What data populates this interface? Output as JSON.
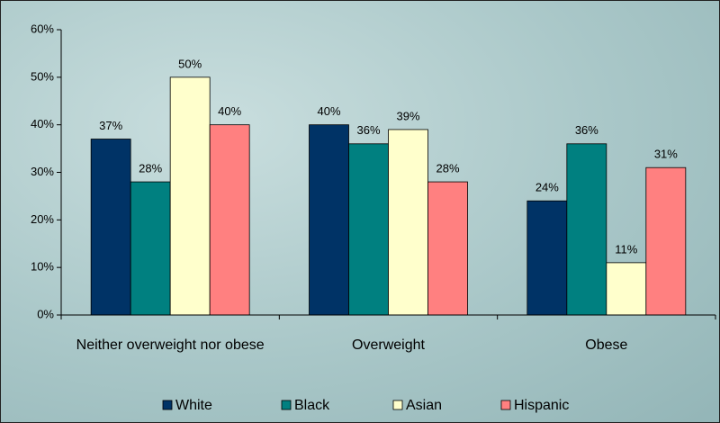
{
  "chart_data": {
    "type": "bar",
    "categories": [
      "Neither overweight nor obese",
      "Overweight",
      "Obese"
    ],
    "series": [
      {
        "name": "White",
        "color": "#003366",
        "values": [
          37,
          40,
          24
        ],
        "value_labels": [
          "37%",
          "40%",
          "24%"
        ]
      },
      {
        "name": "Black",
        "color": "#008080",
        "values": [
          28,
          36,
          36
        ],
        "value_labels": [
          "28%",
          "36%",
          "36%"
        ]
      },
      {
        "name": "Asian",
        "color": "#ffffcc",
        "values": [
          50,
          39,
          11
        ],
        "value_labels": [
          "50%",
          "39%",
          "11%"
        ]
      },
      {
        "name": "Hispanic",
        "color": "#ff8080",
        "values": [
          40,
          28,
          31
        ],
        "value_labels": [
          "40%",
          "28%",
          "31%"
        ]
      }
    ],
    "ylim": [
      0,
      60
    ],
    "yticks": [
      {
        "value": 0,
        "label": "0%"
      },
      {
        "value": 10,
        "label": "10%"
      },
      {
        "value": 20,
        "label": "20%"
      },
      {
        "value": 30,
        "label": "30%"
      },
      {
        "value": 40,
        "label": "40%"
      },
      {
        "value": 50,
        "label": "50%"
      },
      {
        "value": 60,
        "label": "60%"
      }
    ],
    "legend": "bottom"
  }
}
